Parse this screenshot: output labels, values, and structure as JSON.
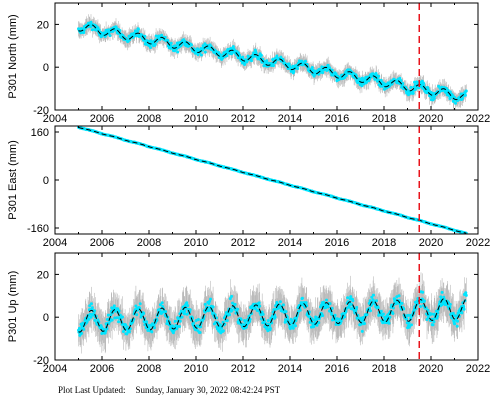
{
  "footer": {
    "label": "Plot Last Updated:",
    "timestamp": "Sunday, January 30, 2022 08:42:24 PST"
  },
  "colors": {
    "scatter": "#00e5ff",
    "errorbar": "#a9a9a9",
    "model": "#000000",
    "marker_line": "#e8141c",
    "frame": "#000000"
  },
  "chart_data": [
    {
      "type": "scatter",
      "ylabel": "P301 North (mm)",
      "xlim": [
        2004,
        2022
      ],
      "ylim": [
        -20,
        30
      ],
      "xticks": [
        2004,
        2006,
        2008,
        2010,
        2012,
        2014,
        2016,
        2018,
        2020,
        2022
      ],
      "yticks": [
        -20,
        0,
        20
      ],
      "data_start": 2005.0,
      "data_end": 2021.5,
      "start_value": 19,
      "end_value": -14,
      "seasonal_amplitude": 2.0,
      "scatter_noise": 2.5,
      "errorbar_halfwidth": 3,
      "marker_line_x": 2019.5
    },
    {
      "type": "scatter",
      "ylabel": "P301 East (mm)",
      "xlim": [
        2004,
        2022
      ],
      "ylim": [
        -180,
        180
      ],
      "xticks": [
        2004,
        2006,
        2008,
        2010,
        2012,
        2014,
        2016,
        2018,
        2020,
        2022
      ],
      "yticks": [
        -160,
        0,
        160
      ],
      "data_start": 2005.0,
      "data_end": 2021.5,
      "start_value": 176,
      "end_value": -178,
      "seasonal_amplitude": 0.8,
      "scatter_noise": 1.5,
      "errorbar_halfwidth": 3,
      "marker_line_x": 2019.5
    },
    {
      "type": "scatter",
      "ylabel": "P301 Up (mm)",
      "xlim": [
        2004,
        2022
      ],
      "ylim": [
        -20,
        30
      ],
      "xticks": [
        2004,
        2006,
        2008,
        2010,
        2012,
        2014,
        2016,
        2018,
        2020,
        2022
      ],
      "yticks": [
        -20,
        0,
        20
      ],
      "data_start": 2005.0,
      "data_end": 2021.5,
      "start_value": -2,
      "end_value": 4,
      "seasonal_amplitude": 5,
      "scatter_noise": 4.5,
      "errorbar_halfwidth": 7,
      "marker_line_x": 2019.5
    }
  ]
}
